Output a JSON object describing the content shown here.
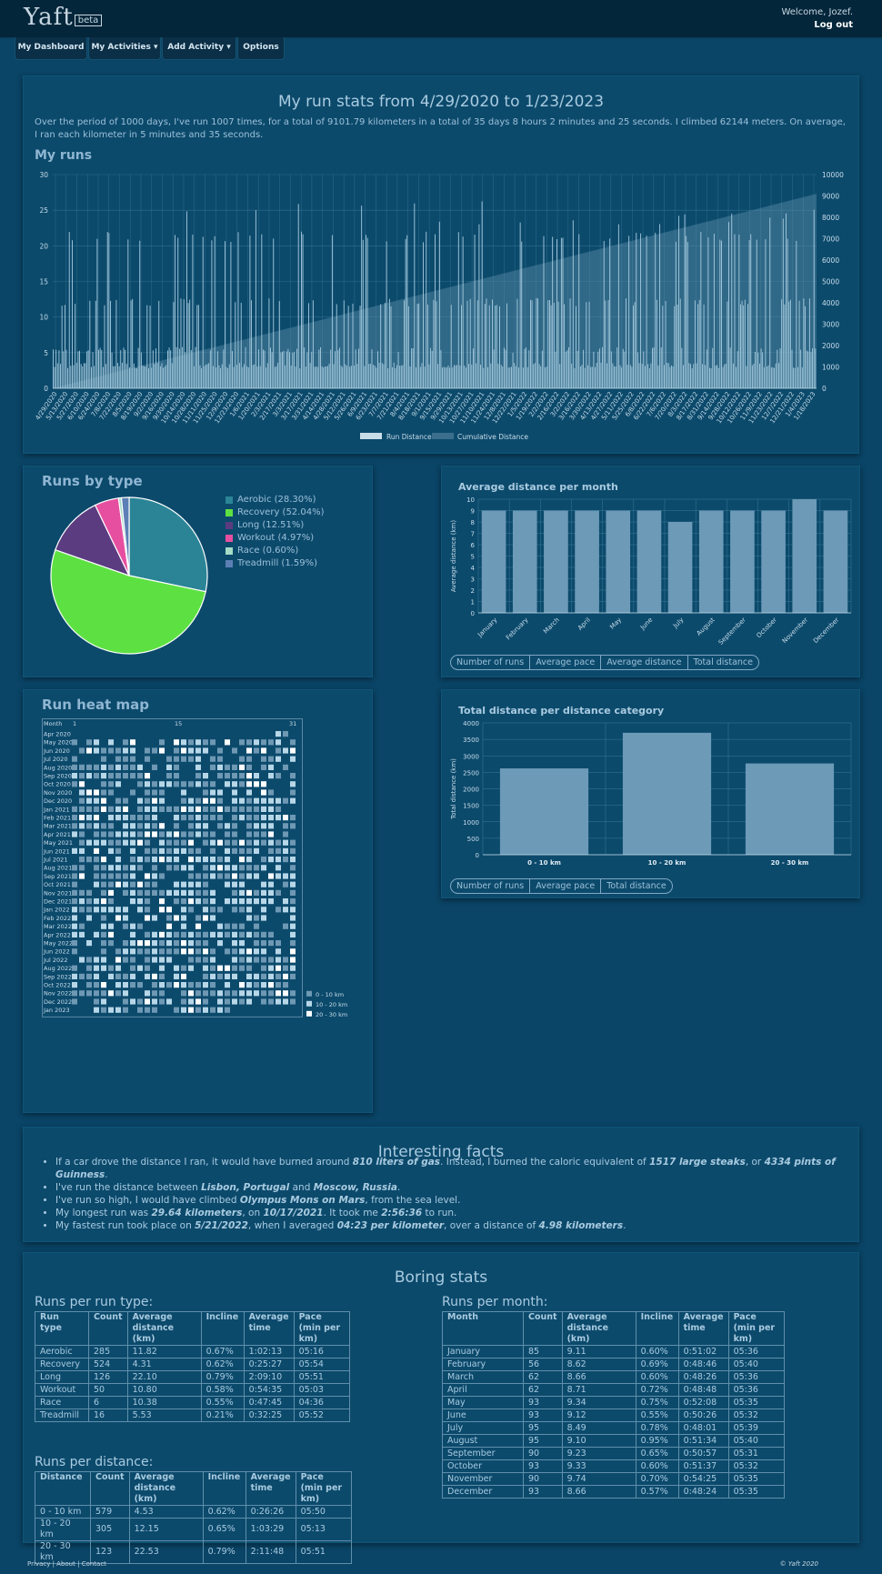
{
  "header": {
    "logo_text": "Yaft",
    "logo_badge": "beta",
    "welcome": "Welcome, Jozef.",
    "logout": "Log out"
  },
  "nav": [
    "My Dashboard",
    "My Activities ▾",
    "Add Activity ▾",
    "Options"
  ],
  "run_stats": {
    "title": "My run stats from 4/29/2020 to 1/23/2023",
    "summary": "Over the period of 1000 days, I've run 1007 times, for a total of 9101.79 kilometers in a total of 35 days 8 hours 2 minutes and 25 seconds. I climbed 62144 meters. On average, I ran each kilometer in 5 minutes and 35 seconds.",
    "section": "My runs",
    "legend": [
      "Run Distance",
      "Cumulative Distance"
    ]
  },
  "runs_by_type": {
    "title": "Runs by type",
    "items": [
      {
        "label": "Aerobic (28.30%)",
        "pct": 28.3,
        "color": "#2a8496"
      },
      {
        "label": "Recovery (52.04%)",
        "pct": 52.04,
        "color": "#5de142"
      },
      {
        "label": "Long (12.51%)",
        "pct": 12.51,
        "color": "#5b3c80"
      },
      {
        "label": "Workout (4.97%)",
        "pct": 4.97,
        "color": "#e64fa0"
      },
      {
        "label": "Race (0.60%)",
        "pct": 0.6,
        "color": "#a4dcc6"
      },
      {
        "label": "Treadmill (1.59%)",
        "pct": 1.59,
        "color": "#5c7fb5"
      }
    ]
  },
  "heat_map": {
    "title": "Run heat map",
    "col_header": "Month",
    "day_ticks": [
      "1",
      "15",
      "31"
    ],
    "months": [
      "Apr 2020",
      "May 2020",
      "Jun 2020",
      "Jul 2020",
      "Aug 2020",
      "Sep 2020",
      "Oct 2020",
      "Nov 2020",
      "Dec 2020",
      "Jan 2021",
      "Feb 2021",
      "Mar 2021",
      "Apr 2021",
      "May 2021",
      "Jun 2021",
      "Jul 2021",
      "Aug 2021",
      "Sep 2021",
      "Oct 2021",
      "Nov 2021",
      "Dec 2021",
      "Jan 2022",
      "Feb 2022",
      "Mar 2022",
      "Apr 2022",
      "May 2022",
      "Jun 2022",
      "Jul 2022",
      "Aug 2022",
      "Sep 2022",
      "Oct 2022",
      "Nov 2022",
      "Dec 2022",
      "Jan 2023"
    ],
    "legend": [
      "0 - 10 km",
      "10 - 20 km",
      "20 - 30 km"
    ],
    "colors": [
      "#6e98b3",
      "#b7d7e8",
      "#ffffff"
    ]
  },
  "chart_data": [
    {
      "type": "bar",
      "title": "My runs",
      "x_ticks": [
        "4/29/2020",
        "5/13/2020",
        "5/27/2020",
        "6/10/2020",
        "6/24/2020",
        "7/8/2020",
        "7/22/2020",
        "8/5/2020",
        "8/19/2020",
        "9/2/2020",
        "9/16/2020",
        "9/30/2020",
        "10/14/2020",
        "10/28/2020",
        "11/11/2020",
        "11/25/2020",
        "12/9/2020",
        "12/23/2020",
        "1/6/2021",
        "1/20/2021",
        "2/3/2021",
        "2/17/2021",
        "3/3/2021",
        "3/17/2021",
        "3/31/2021",
        "4/14/2021",
        "4/28/2021",
        "5/12/2021",
        "5/26/2021",
        "6/9/2021",
        "6/23/2021",
        "7/7/2021",
        "7/21/2021",
        "8/4/2021",
        "8/18/2021",
        "9/1/2021",
        "9/15/2021",
        "9/29/2021",
        "10/13/2021",
        "10/27/2021",
        "11/10/2021",
        "11/24/2021",
        "12/8/2021",
        "12/22/2021",
        "1/5/2022",
        "1/19/2022",
        "2/2/2022",
        "2/16/2022",
        "3/2/2022",
        "3/16/2022",
        "3/30/2022",
        "4/13/2022",
        "4/27/2022",
        "5/11/2022",
        "5/25/2022",
        "6/8/2022",
        "6/22/2022",
        "7/6/2022",
        "7/20/2022",
        "8/3/2022",
        "8/17/2022",
        "8/31/2022",
        "9/14/2022",
        "9/28/2022",
        "10/12/2022",
        "10/26/2022",
        "11/9/2022",
        "11/23/2022",
        "12/7/2022",
        "12/21/2022",
        "1/4/2023",
        "1/18/2023"
      ],
      "y_left": {
        "ticks": [
          "0",
          "5",
          "10",
          "15",
          "20",
          "25",
          "30"
        ],
        "range": [
          0,
          30
        ]
      },
      "y_right": {
        "ticks": [
          "0",
          "1000",
          "2000",
          "3000",
          "4000",
          "5000",
          "6000",
          "7000",
          "8000",
          "9000",
          "10000"
        ],
        "range": [
          0,
          10000
        ]
      },
      "cumulative_final": 9101.79,
      "series": [
        {
          "name": "Run Distance",
          "typical_values_km": [
            3,
            5,
            12,
            21
          ]
        },
        {
          "name": "Cumulative Distance",
          "start": 0,
          "end": 9101.79
        }
      ]
    },
    {
      "type": "bar",
      "title": "Average distance per month",
      "ylabel": "Average distance (km)",
      "categories": [
        "January",
        "February",
        "March",
        "April",
        "May",
        "June",
        "July",
        "August",
        "September",
        "October",
        "November",
        "December"
      ],
      "values": [
        9,
        9,
        9,
        9,
        9,
        9,
        8,
        9,
        9,
        9,
        10,
        9
      ],
      "ylim": [
        0,
        10
      ],
      "y_ticks": [
        "0",
        "1",
        "2",
        "3",
        "4",
        "5",
        "6",
        "7",
        "8",
        "9",
        "10"
      ],
      "tabs": [
        "Number of runs",
        "Average pace",
        "Average distance",
        "Total distance"
      ]
    },
    {
      "type": "bar",
      "title": "Total distance per distance category",
      "ylabel": "Total distance (km)",
      "categories": [
        "0 - 10 km",
        "10 - 20 km",
        "20 - 30 km"
      ],
      "values": [
        2620,
        3700,
        2770
      ],
      "ylim": [
        0,
        4000
      ],
      "y_ticks": [
        "0",
        "500",
        "1000",
        "1500",
        "2000",
        "2500",
        "3000",
        "3500",
        "4000"
      ],
      "tabs": [
        "Number of runs",
        "Average pace",
        "Total distance"
      ]
    }
  ],
  "facts": {
    "title": "Interesting facts",
    "items": [
      [
        "If a car drove the distance I ran, it would have burned around ",
        "810 liters of gas",
        ". Instead, I burned the caloric equivalent of ",
        "1517 large steaks",
        ", or ",
        "4334 pints of Guinness",
        "."
      ],
      [
        "I've run the distance between ",
        "Lisbon, Portugal",
        " and ",
        "Moscow, Russia",
        "."
      ],
      [
        "I've run so high, I would have climbed ",
        "Olympus Mons on Mars",
        ", from the sea level."
      ],
      [
        "My longest run was ",
        "29.64 kilometers",
        ", on ",
        "10/17/2021",
        ". It took me ",
        "2:56:36",
        " to run."
      ],
      [
        "My fastest run took place on ",
        "5/21/2022",
        ", when I averaged ",
        "04:23 per kilometer",
        ", over a distance of ",
        "4.98 kilometers",
        "."
      ]
    ]
  },
  "boring": {
    "title": "Boring stats",
    "per_type": {
      "caption": "Runs per run type:",
      "headers": [
        "Run type",
        "Count",
        "Average distance (km)",
        "Incline",
        "Average time",
        "Pace (min per km)"
      ],
      "rows": [
        [
          "Aerobic",
          "285",
          "11.82",
          "0.67%",
          "1:02:13",
          "05:16"
        ],
        [
          "Recovery",
          "524",
          "4.31",
          "0.62%",
          "0:25:27",
          "05:54"
        ],
        [
          "Long",
          "126",
          "22.10",
          "0.79%",
          "2:09:10",
          "05:51"
        ],
        [
          "Workout",
          "50",
          "10.80",
          "0.58%",
          "0:54:35",
          "05:03"
        ],
        [
          "Race",
          "6",
          "10.38",
          "0.55%",
          "0:47:45",
          "04:36"
        ],
        [
          "Treadmill",
          "16",
          "5.53",
          "0.21%",
          "0:32:25",
          "05:52"
        ]
      ]
    },
    "per_distance": {
      "caption": "Runs per distance:",
      "headers": [
        "Distance",
        "Count",
        "Average distance (km)",
        "Incline",
        "Average time",
        "Pace (min per km)"
      ],
      "rows": [
        [
          "0 - 10 km",
          "579",
          "4.53",
          "0.62%",
          "0:26:26",
          "05:50"
        ],
        [
          "10 - 20 km",
          "305",
          "12.15",
          "0.65%",
          "1:03:29",
          "05:13"
        ],
        [
          "20 - 30 km",
          "123",
          "22.53",
          "0.79%",
          "2:11:48",
          "05:51"
        ]
      ]
    },
    "per_month": {
      "caption": "Runs per month:",
      "headers": [
        "Month",
        "Count",
        "Average distance (km)",
        "Incline",
        "Average time",
        "Pace (min per km)"
      ],
      "rows": [
        [
          "January",
          "85",
          "9.11",
          "0.60%",
          "0:51:02",
          "05:36"
        ],
        [
          "February",
          "56",
          "8.62",
          "0.69%",
          "0:48:46",
          "05:40"
        ],
        [
          "March",
          "62",
          "8.66",
          "0.60%",
          "0:48:26",
          "05:36"
        ],
        [
          "April",
          "62",
          "8.71",
          "0.72%",
          "0:48:48",
          "05:36"
        ],
        [
          "May",
          "93",
          "9.34",
          "0.75%",
          "0:52:08",
          "05:35"
        ],
        [
          "June",
          "93",
          "9.12",
          "0.55%",
          "0:50:26",
          "05:32"
        ],
        [
          "July",
          "95",
          "8.49",
          "0.78%",
          "0:48:01",
          "05:39"
        ],
        [
          "August",
          "95",
          "9.10",
          "0.95%",
          "0:51:34",
          "05:40"
        ],
        [
          "September",
          "90",
          "9.23",
          "0.65%",
          "0:50:57",
          "05:31"
        ],
        [
          "October",
          "93",
          "9.33",
          "0.60%",
          "0:51:37",
          "05:32"
        ],
        [
          "November",
          "90",
          "9.74",
          "0.70%",
          "0:54:25",
          "05:35"
        ],
        [
          "December",
          "93",
          "8.66",
          "0.57%",
          "0:48:24",
          "05:35"
        ]
      ]
    }
  },
  "footer": {
    "privacy": "Privacy",
    "about": "About",
    "contact": "Contact",
    "copyright": "© Yaft 2020"
  }
}
